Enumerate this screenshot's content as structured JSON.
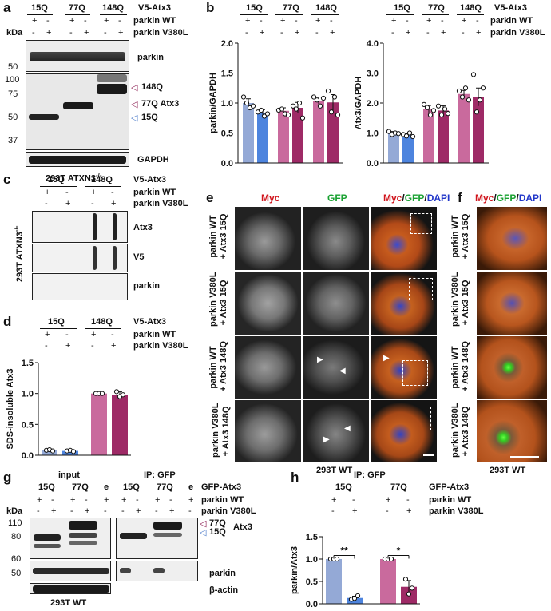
{
  "panel_letters": [
    "a",
    "b",
    "c",
    "d",
    "e",
    "f",
    "g",
    "h"
  ],
  "common": {
    "v5_atx3": "V5-Atx3",
    "gfp_atx3": "GFP-Atx3",
    "parkin_wt": "parkin WT",
    "parkin_v380l": "parkin V380L",
    "plus": "+",
    "minus": "-",
    "kda": "kDa",
    "q15": "15Q",
    "q77": "77Q",
    "q148": "148Q",
    "e": "e"
  },
  "panel_a": {
    "markers": [
      "100",
      "75",
      "50",
      "37"
    ],
    "labels": {
      "parkin": "parkin",
      "q148": "148Q",
      "atx3": "77Q Atx3",
      "q15": "15Q",
      "gapdh": "GAPDH"
    },
    "cell_line": "293T ATXN3",
    "cell_sup": "-/-",
    "colors": {
      "q148": "#8c1d52",
      "q77": "#8c1d52",
      "q15": "#4a7ac9"
    }
  },
  "panel_b": {
    "chart_data": [
      {
        "type": "bar",
        "ylabel": "parkin/GAPDH",
        "ylim": [
          0,
          2.0
        ],
        "yticks": [
          "0.0",
          "0.5",
          "1.0",
          "1.5",
          "2.0"
        ],
        "categories": [
          "15Q WT",
          "15Q V380L",
          "77Q WT",
          "77Q V380L",
          "148Q WT",
          "148Q V380L"
        ],
        "values": [
          1.0,
          0.84,
          0.87,
          0.92,
          1.04,
          1.01
        ],
        "errors": [
          0.07,
          0.05,
          0.05,
          0.09,
          0.06,
          0.13
        ],
        "points": [
          [
            1.1,
            1.0,
            0.92,
            0.95
          ],
          [
            0.85,
            0.88,
            0.78,
            0.82
          ],
          [
            0.88,
            0.9,
            0.82,
            0.8
          ],
          [
            0.95,
            0.9,
            1.0,
            0.75
          ],
          [
            1.1,
            1.05,
            0.95,
            1.08
          ],
          [
            1.2,
            0.85,
            1.1,
            0.8
          ]
        ],
        "colors": [
          "#94a9d6",
          "#4d84de",
          "#c96a9d",
          "#9e2a66",
          "#c96a9d",
          "#9e2a66"
        ]
      },
      {
        "type": "bar",
        "ylabel": "Atx3/GAPDH",
        "ylim": [
          0,
          4.0
        ],
        "yticks": [
          "0.0",
          "1.0",
          "2.0",
          "3.0",
          "4.0"
        ],
        "categories": [
          "15Q WT",
          "15Q V380L",
          "77Q WT",
          "77Q V380L",
          "148Q WT",
          "148Q V380L"
        ],
        "values": [
          1.0,
          0.93,
          1.8,
          1.75,
          2.3,
          2.2
        ],
        "errors": [
          0.05,
          0.05,
          0.12,
          0.16,
          0.12,
          0.3
        ],
        "points": [
          [
            1.05,
            0.95,
            1.0,
            0.98
          ],
          [
            0.95,
            0.9,
            1.0,
            0.88
          ],
          [
            1.95,
            1.85,
            1.6,
            1.75
          ],
          [
            1.9,
            1.6,
            1.8,
            1.65
          ],
          [
            2.4,
            2.2,
            2.5,
            2.1
          ],
          [
            2.95,
            1.7,
            2.1,
            2.5
          ]
        ],
        "colors": [
          "#94a9d6",
          "#4d84de",
          "#c96a9d",
          "#9e2a66",
          "#c96a9d",
          "#9e2a66"
        ]
      }
    ]
  },
  "panel_c": {
    "labels": {
      "atx3": "Atx3",
      "v5": "V5",
      "parkin": "parkin"
    },
    "cell_line": "293T ATXN3",
    "cell_sup": "-/-"
  },
  "panel_d": {
    "chart_data": {
      "type": "bar",
      "ylabel": "SDS-insoluble Atx3",
      "ylim": [
        0,
        1.5
      ],
      "yticks": [
        "0.0",
        "0.5",
        "1.0",
        "1.5"
      ],
      "categories": [
        "15Q WT",
        "15Q V380L",
        "148Q WT",
        "148Q V380L"
      ],
      "values": [
        0.08,
        0.07,
        1.0,
        0.98
      ],
      "errors": [
        0.0,
        0.0,
        0.0,
        0.05
      ],
      "points": [
        [
          0.08,
          0.09,
          0.07
        ],
        [
          0.07,
          0.08,
          0.06
        ],
        [
          1.0,
          1.0,
          1.0
        ],
        [
          1.03,
          0.95,
          0.98
        ]
      ],
      "colors": [
        "#94a9d6",
        "#4d84de",
        "#c96a9d",
        "#9e2a66"
      ]
    }
  },
  "panel_e": {
    "headers": {
      "myc": "Myc",
      "gfp": "GFP",
      "slash": "/",
      "dapi": "DAPI"
    },
    "rows": [
      {
        "line1": "parkin WT",
        "line2": "+ Atx3 15Q"
      },
      {
        "line1": "parkin V380L",
        "line2": "+ Atx3 15Q"
      },
      {
        "line1": "parkin WT",
        "line2": "+ Atx3 148Q"
      },
      {
        "line1": "parkin V380L",
        "line2": "+ Atx3 148Q"
      }
    ],
    "caption": "293T WT"
  },
  "panel_f": {
    "caption": "293T WT"
  },
  "panel_g": {
    "input": "input",
    "ip": "IP: GFP",
    "markers": [
      "110",
      "80",
      "60",
      "50"
    ],
    "labels": {
      "q77": "77Q",
      "atx3": "Atx3",
      "q15": "15Q",
      "parkin": "parkin",
      "actin": "β-actin"
    },
    "caption": "293T WT"
  },
  "panel_h": {
    "title": "IP: GFP",
    "sig1": "**",
    "sig2": "*",
    "chart_data": {
      "type": "bar",
      "ylabel": "parkin/Atx3",
      "ylim": [
        0,
        1.5
      ],
      "yticks": [
        "0.0",
        "0.5",
        "1.0",
        "1.5"
      ],
      "categories": [
        "15Q WT",
        "15Q V380L",
        "77Q WT",
        "77Q V380L"
      ],
      "values": [
        1.0,
        0.13,
        1.0,
        0.38
      ],
      "errors": [
        0.0,
        0.04,
        0.0,
        0.14
      ],
      "points": [
        [
          1.0,
          1.0,
          1.0
        ],
        [
          0.1,
          0.12,
          0.18
        ],
        [
          1.0,
          1.0,
          1.0
        ],
        [
          0.55,
          0.22,
          0.35
        ]
      ],
      "colors": [
        "#94a9d6",
        "#4d84de",
        "#c96a9d",
        "#9e2a66"
      ]
    }
  }
}
